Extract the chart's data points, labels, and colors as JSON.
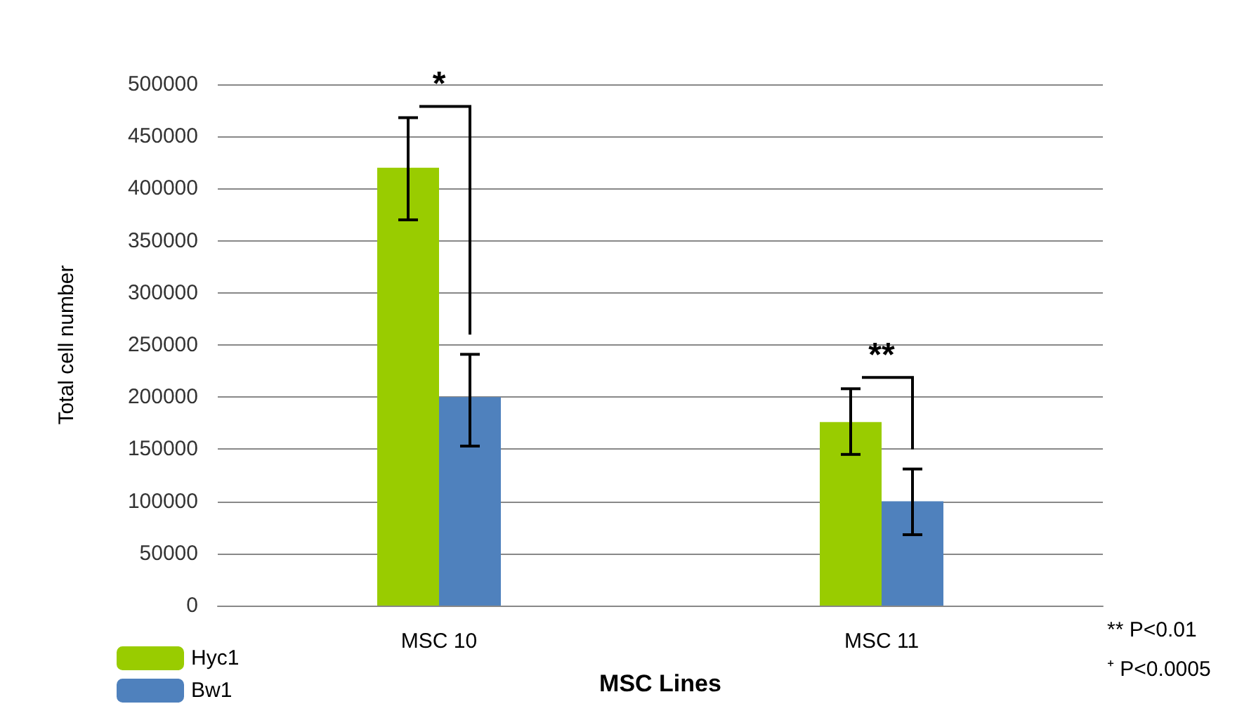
{
  "chart_data": {
    "type": "bar",
    "xlabel": "MSC Lines",
    "ylabel": "Total cell number",
    "categories": [
      "MSC 10",
      "MSC 11"
    ],
    "series": [
      {
        "name": "Hyc1",
        "color": "#99cc00",
        "values": [
          420000,
          176000
        ],
        "errors": [
          [
            370000,
            468000
          ],
          [
            145000,
            208000
          ]
        ]
      },
      {
        "name": "Bw1",
        "color": "#4f81bd",
        "values": [
          200000,
          100000
        ],
        "errors": [
          [
            153000,
            241000
          ],
          [
            68000,
            131000
          ]
        ]
      }
    ],
    "ylim": [
      0,
      500000
    ],
    "yticks": [
      0,
      50000,
      100000,
      150000,
      200000,
      250000,
      300000,
      350000,
      400000,
      450000,
      500000
    ],
    "grid": "y",
    "legend": "bottom left",
    "annotations": [
      "*",
      "**",
      "** P<0.01",
      "⁺ P<0.0005"
    ]
  }
}
